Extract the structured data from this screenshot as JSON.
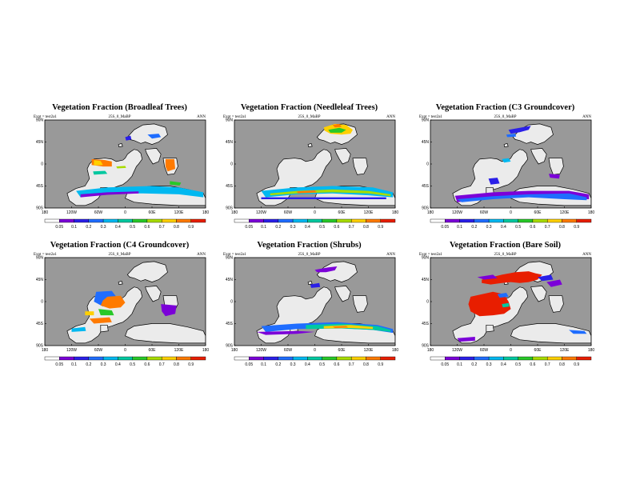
{
  "panels": [
    {
      "id": "broadleaf",
      "title": "Vegetation Fraction (Broadleaf Trees)",
      "left": "Expt = test2a1",
      "center": "25S_0_MaBP",
      "right": "ANN"
    },
    {
      "id": "needleleaf",
      "title": "Vegetation Fraction (Needleleaf Trees)",
      "left": "Expt = test2a1",
      "center": "25S_0_MaBP",
      "right": "ANN"
    },
    {
      "id": "c3",
      "title": "Vegetation Fraction (C3 Groundcover)",
      "left": "Expt = test2a1",
      "center": "25S_0_MaBP",
      "right": "ANN"
    },
    {
      "id": "c4",
      "title": "Vegetation Fraction (C4 Groundcover)",
      "left": "Expt = test2a1",
      "center": "25S_0_MaBP",
      "right": "ANN"
    },
    {
      "id": "shrubs",
      "title": "Vegetation Fraction (Shrubs)",
      "left": "Expt = test2a1",
      "center": "25S_0_MaBP",
      "right": "ANN"
    },
    {
      "id": "baresoil",
      "title": "Vegetation Fraction (Bare Soil)",
      "left": "Expt = test2a1",
      "center": "25S_0_MaBP",
      "right": "ANN"
    }
  ],
  "chart_data": {
    "type": "heatmap",
    "x_ticks": [
      "180",
      "120W",
      "60W",
      "0",
      "60E",
      "120E",
      "180"
    ],
    "y_ticks": [
      "90N",
      "45N",
      "0",
      "45S",
      "90S"
    ],
    "colorbar": {
      "ticks": [
        "0.05",
        "0.1",
        "0.2",
        "0.3",
        "0.4",
        "0.5",
        "0.6",
        "0.7",
        "0.8",
        "0.9"
      ],
      "colors": [
        "#ffffff",
        "#7b00d8",
        "#2a1fe8",
        "#1f6dff",
        "#00b8f0",
        "#00c8a0",
        "#28c828",
        "#a8dc00",
        "#ffd000",
        "#ff7a00",
        "#e81e00"
      ]
    },
    "colors": {
      "ocean": "#999999",
      "land": "#ebebeb"
    }
  }
}
